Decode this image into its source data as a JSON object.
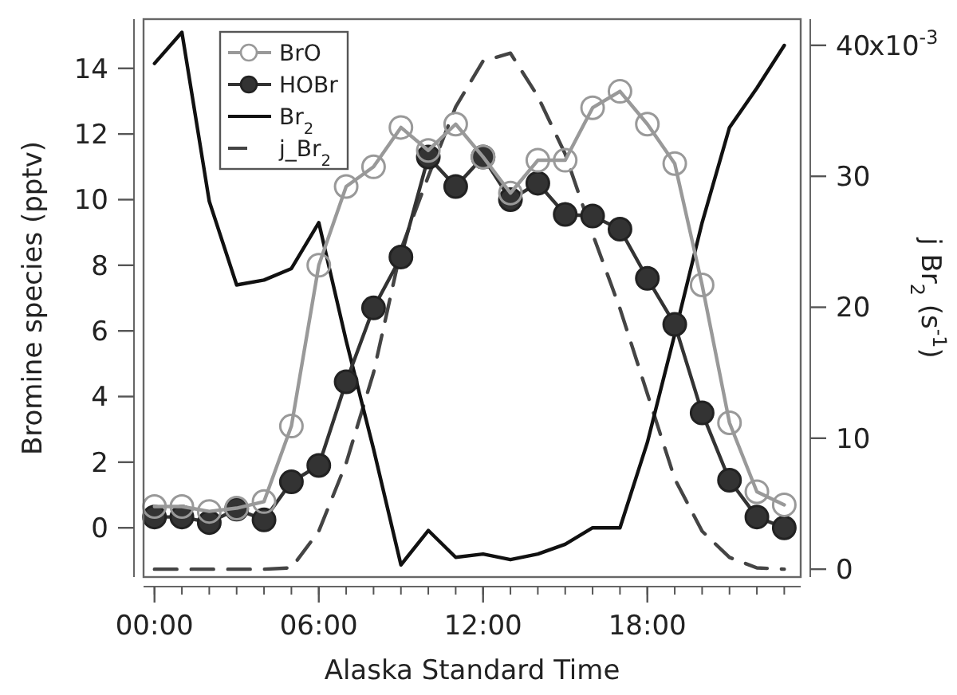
{
  "chart_data": {
    "type": "line",
    "xlabel": "Alaska Standard Time",
    "ylabel": "Bromine species (pptv)",
    "y2label": "j Br$_{2}$ (s$^{-1}$)",
    "x": [
      0,
      1,
      2,
      3,
      4,
      5,
      6,
      7,
      8,
      9,
      10,
      11,
      12,
      13,
      14,
      15,
      16,
      17,
      18,
      19,
      20,
      21,
      22,
      23
    ],
    "xlim": [
      -0.4,
      23.6
    ],
    "xticks": [
      {
        "value": 0,
        "label": "00:00"
      },
      {
        "value": 6,
        "label": "06:00"
      },
      {
        "value": 12,
        "label": "12:00"
      },
      {
        "value": 18,
        "label": "18:00"
      }
    ],
    "ylim": [
      -1.5,
      15.5
    ],
    "yticks": [
      0,
      2,
      4,
      6,
      8,
      10,
      12,
      14
    ],
    "y2lim": [
      -0.6,
      42
    ],
    "y2ticks": [
      0,
      10,
      20,
      30,
      40
    ],
    "annotations": [
      "x10$^{-3}$"
    ],
    "grid": false,
    "legend": "top left",
    "series": [
      {
        "name": "BrO",
        "color": "#999999",
        "marker": "circle",
        "line_style": "solid",
        "values": [
          0.65,
          0.65,
          0.5,
          0.6,
          0.8,
          3.1,
          8.0,
          10.4,
          11.0,
          12.2,
          11.5,
          12.3,
          11.3,
          10.2,
          11.2,
          11.2,
          12.8,
          13.3,
          12.3,
          11.1,
          7.4,
          3.2,
          1.1,
          0.7
        ]
      },
      {
        "name": "HOBr",
        "color": "#333333",
        "marker": "circle",
        "line_style": "solid",
        "values": [
          0.33,
          0.33,
          0.16,
          0.57,
          0.24,
          1.4,
          1.9,
          4.45,
          6.7,
          8.25,
          11.3,
          10.4,
          11.3,
          10.0,
          10.5,
          9.55,
          9.5,
          9.1,
          7.6,
          6.2,
          3.5,
          1.45,
          0.33,
          0.0
        ]
      },
      {
        "name": "Br$_{2}$",
        "color": "#111111",
        "marker": "none",
        "line_style": "solid",
        "values": [
          14.15,
          15.1,
          9.95,
          7.4,
          7.55,
          7.9,
          9.3,
          5.7,
          2.4,
          -1.13,
          -0.08,
          -0.9,
          -0.8,
          -0.97,
          -0.8,
          -0.5,
          0.0,
          0.0,
          2.6,
          5.9,
          9.3,
          12.2,
          13.4,
          14.7
        ]
      },
      {
        "name": "j_Br$_{2}$",
        "color": "#444444",
        "marker": "none",
        "line_style": "dashed",
        "axis": "y2",
        "values": [
          0,
          0,
          0,
          0,
          0,
          0.1,
          2.9,
          8.1,
          15.0,
          24.4,
          30.0,
          35.3,
          38.8,
          39.4,
          36.1,
          31.7,
          25.6,
          19.9,
          13.4,
          6.9,
          2.9,
          0.9,
          0.1,
          0
        ]
      }
    ]
  }
}
